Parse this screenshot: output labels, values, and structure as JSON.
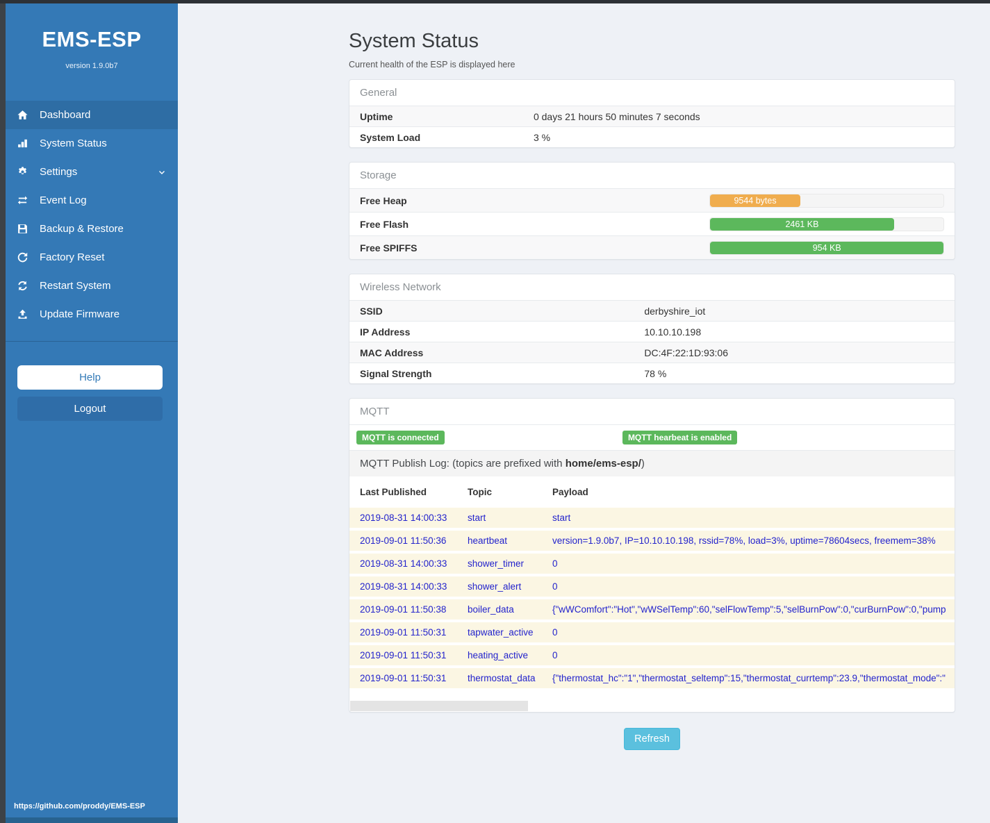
{
  "app": {
    "title": "EMS-ESP",
    "version": "version 1.9.0b7",
    "footer_url": "https://github.com/proddy/EMS-ESP"
  },
  "sidebar": {
    "items": [
      {
        "label": "Dashboard",
        "icon": "home-icon",
        "active": true
      },
      {
        "label": "System Status",
        "icon": "system-status-icon"
      },
      {
        "label": "Settings",
        "icon": "gear-icon"
      },
      {
        "label": "Event Log",
        "icon": "exchange-icon"
      },
      {
        "label": "Backup & Restore",
        "icon": "save-icon"
      },
      {
        "label": "Factory Reset",
        "icon": "rotate-left-icon"
      },
      {
        "label": "Restart System",
        "icon": "refresh-icon"
      },
      {
        "label": "Update Firmware",
        "icon": "upload-icon"
      }
    ],
    "help_label": "Help",
    "logout_label": "Logout"
  },
  "page": {
    "title": "System Status",
    "subtitle": "Current health of the ESP is displayed here",
    "refresh_label": "Refresh"
  },
  "general": {
    "header": "General",
    "rows": [
      {
        "label": "Uptime",
        "value": "0 days 21 hours 50 minutes 7 seconds"
      },
      {
        "label": "System Load",
        "value": "3 %"
      }
    ]
  },
  "storage": {
    "header": "Storage",
    "rows": [
      {
        "label": "Free Heap",
        "value": "9544 bytes",
        "percent": 38.5,
        "color": "#f0ad4e"
      },
      {
        "label": "Free Flash",
        "value": "2461 KB",
        "percent": 78.7,
        "color": "#5cb85c"
      },
      {
        "label": "Free SPIFFS",
        "value": "954 KB",
        "percent": 100,
        "color": "#5cb85c"
      }
    ]
  },
  "wireless": {
    "header": "Wireless Network",
    "rows": [
      {
        "label": "SSID",
        "value": "derbyshire_iot"
      },
      {
        "label": "IP Address",
        "value": "10.10.10.198"
      },
      {
        "label": "MAC Address",
        "value": "DC:4F:22:1D:93:06"
      },
      {
        "label": "Signal Strength",
        "value": "78 %"
      }
    ]
  },
  "mqtt": {
    "header": "MQTT",
    "badges": [
      "MQTT is connected",
      "MQTT hearbeat is enabled"
    ],
    "log_title": {
      "prefix": "MQTT Publish Log: (topics are prefixed with ",
      "bold": "home/ems-esp/",
      "suffix": ")"
    },
    "columns": [
      "Last Published",
      "Topic",
      "Payload"
    ],
    "rows": [
      {
        "published": "2019-08-31 14:00:33",
        "topic": "start",
        "payload": "start"
      },
      {
        "published": "2019-09-01 11:50:36",
        "topic": "heartbeat",
        "payload": "version=1.9.0b7, IP=10.10.10.198, rssid=78%, load=3%, uptime=78604secs, freemem=38%"
      },
      {
        "published": "2019-08-31 14:00:33",
        "topic": "shower_timer",
        "payload": "0"
      },
      {
        "published": "2019-08-31 14:00:33",
        "topic": "shower_alert",
        "payload": "0"
      },
      {
        "published": "2019-09-01 11:50:38",
        "topic": "boiler_data",
        "payload": "{\"wWComfort\":\"Hot\",\"wWSelTemp\":60,\"selFlowTemp\":5,\"selBurnPow\":0,\"curBurnPow\":0,\"pump"
      },
      {
        "published": "2019-09-01 11:50:31",
        "topic": "tapwater_active",
        "payload": "0"
      },
      {
        "published": "2019-09-01 11:50:31",
        "topic": "heating_active",
        "payload": "0"
      },
      {
        "published": "2019-09-01 11:50:31",
        "topic": "thermostat_data",
        "payload": "{\"thermostat_hc\":\"1\",\"thermostat_seltemp\":15,\"thermostat_currtemp\":23.9,\"thermostat_mode\":\""
      }
    ],
    "scrollbar": {
      "thumb_percent": 29.5
    }
  },
  "colors": {
    "sidebar_blue": "#3479b6",
    "active_blue": "#2e6da4",
    "badge_green": "#5cb85c",
    "bar_orange": "#f0ad4e",
    "bar_green": "#5cb85c",
    "refresh_blue": "#5bc0de",
    "log_text_blue": "#2323cc"
  }
}
